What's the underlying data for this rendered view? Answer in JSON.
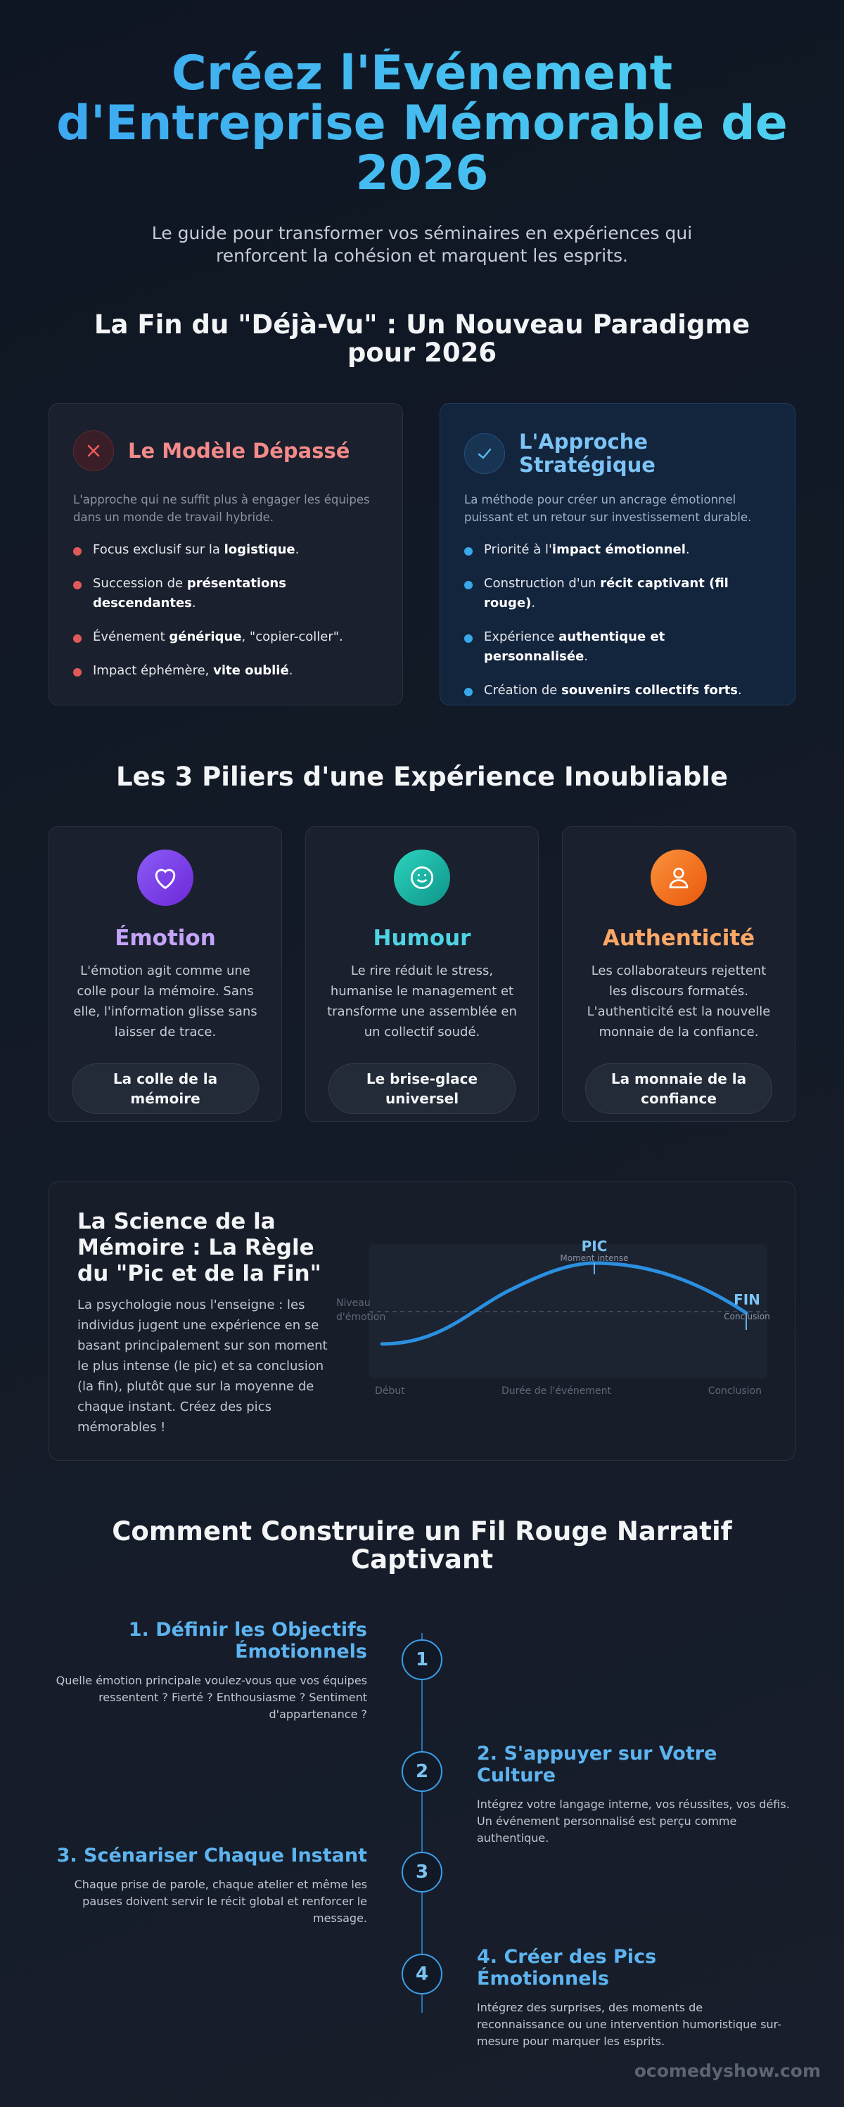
{
  "header": {
    "title": "Créez l'Événement d'Entreprise Mémorable de 2026",
    "subtitle": "Le guide pour transformer vos séminaires en expériences qui renforcent la cohésion et marquent les esprits."
  },
  "paradigm": {
    "title": "La Fin du \"Déjà-Vu\" : Un Nouveau Paradigme pour 2026",
    "old": {
      "title": "Le Modèle Dépassé",
      "description": "L'approche qui ne suffit plus à engager les équipes dans un monde de travail hybride.",
      "items": [
        {
          "before": "Focus exclusif sur la ",
          "bold": "logistique",
          "after": "."
        },
        {
          "before": "Succession de ",
          "bold": "présentations descendantes",
          "after": "."
        },
        {
          "before": "Événement ",
          "bold": "générique",
          "after": ", \"copier-coller\"."
        },
        {
          "before": "Impact éphémère, ",
          "bold": "vite oublié",
          "after": "."
        }
      ]
    },
    "new": {
      "title": "L'Approche Stratégique",
      "description": "La méthode pour créer un ancrage émotionnel puissant et un retour sur investissement durable.",
      "items": [
        {
          "before": "Priorité à l'",
          "bold": "impact émotionnel",
          "after": "."
        },
        {
          "before": "Construction d'un ",
          "bold": "récit captivant (fil rouge)",
          "after": "."
        },
        {
          "before": "Expérience ",
          "bold": "authentique et personnalisée",
          "after": "."
        },
        {
          "before": "Création de ",
          "bold": "souvenirs collectifs forts",
          "after": "."
        }
      ]
    }
  },
  "pillars": {
    "title": "Les 3 Piliers d'une Expérience Inoubliable",
    "items": [
      {
        "title": "Émotion",
        "text": "L'émotion agit comme une colle pour la mémoire. Sans elle, l'information glisse sans laisser de trace.",
        "tag": "La colle de la mémoire"
      },
      {
        "title": "Humour",
        "text": "Le rire réduit le stress, humanise le management et transforme une assemblée en un collectif soudé.",
        "tag": "Le brise-glace universel"
      },
      {
        "title": "Authenticité",
        "text": "Les collaborateurs rejettent les discours formatés. L'authenticité est la nouvelle monnaie de la confiance.",
        "tag": "La monnaie de la confiance"
      }
    ]
  },
  "memory": {
    "title": "La Science de la Mémoire : La Règle du \"Pic et de la Fin\"",
    "text": "La psychologie nous l'enseigne : les individus jugent une expérience en se basant principalement sur son moment le plus intense (le pic) et sa conclusion (la fin), plutôt que sur la moyenne de chaque instant. Créez des pics mémorables !",
    "diagram": {
      "y_label": "Niveau d'émotion",
      "peak": "PIC",
      "peak_note": "Moment intense",
      "end": "FIN",
      "end_note": "Conclusion",
      "x_start": "Début",
      "x_label": "Durée de l'événement",
      "x_end": "Conclusion"
    }
  },
  "narrative": {
    "title": "Comment Construire un Fil Rouge Narratif Captivant",
    "steps": [
      {
        "number": 1,
        "title": "1. Définir les Objectifs Émotionnels",
        "text": "Quelle émotion principale voulez-vous que vos équipes ressentent ? Fierté ? Enthousiasme ? Sentiment d'appartenance ?"
      },
      {
        "number": 2,
        "title": "2. S'appuyer sur Votre Culture",
        "text": "Intégrez votre langage interne, vos réussites, vos défis. Un événement personnalisé est perçu comme authentique."
      },
      {
        "number": 3,
        "title": "3. Scénariser Chaque Instant",
        "text": "Chaque prise de parole, chaque atelier et même les pauses doivent servir le récit global et renforcer le message."
      },
      {
        "number": 4,
        "title": "4. Créer des Pics Émotionnels",
        "text": "Intégrez des surprises, des moments de reconnaissance ou une intervention humoristique sur-mesure pour marquer les esprits."
      }
    ]
  },
  "footer": {
    "site": "ocomedyshow.com"
  }
}
